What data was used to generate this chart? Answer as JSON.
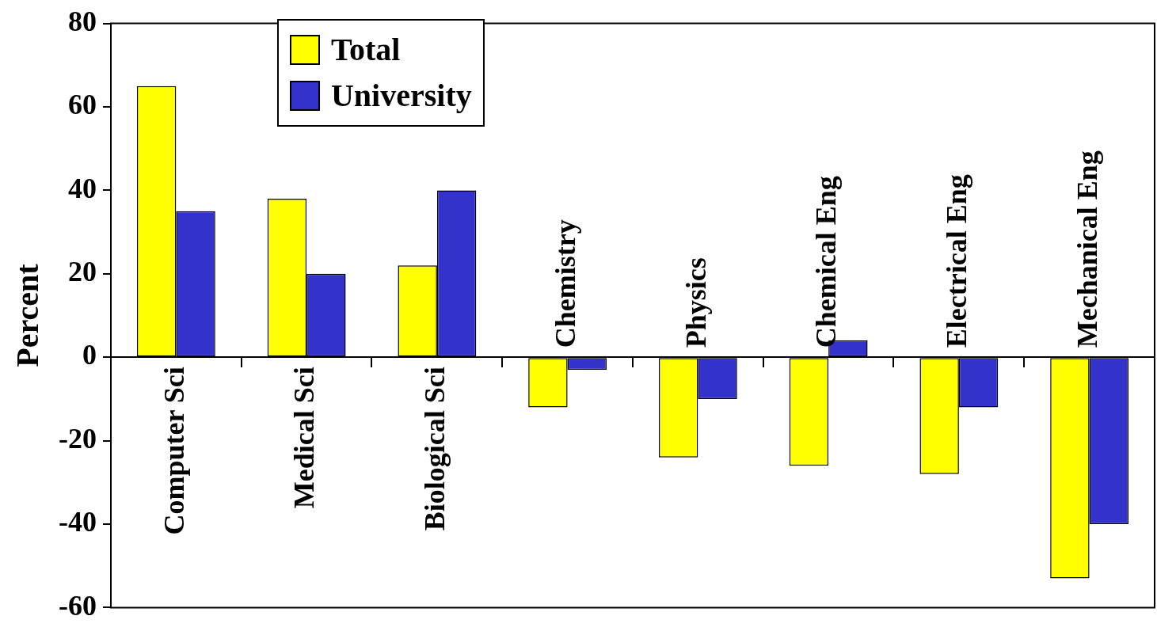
{
  "chart_data": {
    "type": "bar",
    "ylabel": "Percent",
    "categories": [
      "Computer Sci",
      "Medical Sci",
      "Biological Sci",
      "Chemistry",
      "Physics",
      "Chemical Eng",
      "Electrical Eng",
      "Mechanical Eng"
    ],
    "series": [
      {
        "name": "Total",
        "color": "#ffff00",
        "values": [
          65,
          38,
          22,
          -12,
          -24,
          -26,
          -28,
          -53
        ]
      },
      {
        "name": "University",
        "color": "#3333cc",
        "values": [
          35,
          20,
          40,
          -3,
          -10,
          4,
          -12,
          -40
        ]
      }
    ],
    "ylim": [
      -60,
      80
    ],
    "yticks": [
      -60,
      -40,
      -20,
      0,
      20,
      40,
      60,
      80
    ],
    "grid": false,
    "legend": "top left"
  }
}
